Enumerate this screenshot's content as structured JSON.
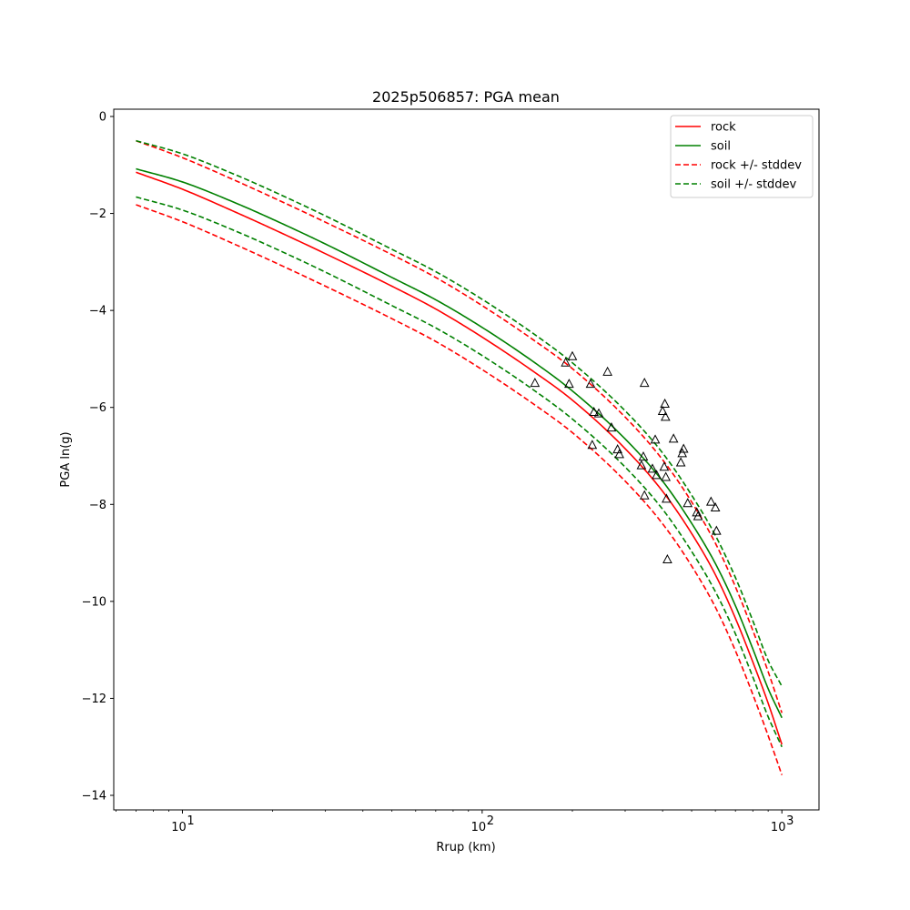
{
  "chart_data": {
    "type": "line",
    "title": "2025p506857: PGA mean",
    "xlabel": "Rrup (km)",
    "ylabel": "PGA ln(g)",
    "xscale": "log",
    "xlim": [
      5.9,
      1330
    ],
    "ylim": [
      -14.3,
      0.15
    ],
    "grid": false,
    "legend_position": "top-right",
    "x_ticks": [
      {
        "value": 10,
        "base": "10",
        "exp": "1"
      },
      {
        "value": 100,
        "base": "10",
        "exp": "2"
      },
      {
        "value": 1000,
        "base": "10",
        "exp": "3"
      }
    ],
    "y_ticks": [
      {
        "value": 0,
        "label": "0"
      },
      {
        "value": -2,
        "label": "−2"
      },
      {
        "value": -4,
        "label": "−4"
      },
      {
        "value": -6,
        "label": "−6"
      },
      {
        "value": -8,
        "label": "−8"
      },
      {
        "value": -10,
        "label": "−10"
      },
      {
        "value": -12,
        "label": "−12"
      },
      {
        "value": -14,
        "label": "−14"
      }
    ],
    "x": [
      7,
      10,
      15,
      20,
      30,
      50,
      70,
      100,
      150,
      200,
      300,
      400,
      500,
      600,
      700,
      800,
      900,
      1000
    ],
    "series": [
      {
        "name": "rock",
        "style": "solid",
        "color": "#ff0000",
        "in_legend": true,
        "values": [
          -1.15,
          -1.5,
          -1.97,
          -2.32,
          -2.83,
          -3.5,
          -3.97,
          -4.55,
          -5.28,
          -5.85,
          -6.85,
          -7.73,
          -8.6,
          -9.45,
          -10.35,
          -11.25,
          -12.1,
          -12.95
        ]
      },
      {
        "name": "soil",
        "style": "solid",
        "color": "#008000",
        "in_legend": true,
        "values": [
          -1.08,
          -1.35,
          -1.78,
          -2.12,
          -2.63,
          -3.32,
          -3.78,
          -4.35,
          -5.08,
          -5.66,
          -6.65,
          -7.52,
          -8.39,
          -9.22,
          -10.09,
          -10.98,
          -11.8,
          -12.4
        ]
      },
      {
        "name": "rock +/- stddev",
        "style": "dashed",
        "color": "#ff0000",
        "in_legend": true,
        "values": [
          -0.5,
          -0.85,
          -1.32,
          -1.67,
          -2.18,
          -2.85,
          -3.32,
          -3.9,
          -4.63,
          -5.2,
          -6.2,
          -7.08,
          -7.95,
          -8.8,
          -9.7,
          -10.6,
          -11.45,
          -12.3
        ]
      },
      {
        "name": "",
        "style": "dashed",
        "color": "#ff0000",
        "in_legend": false,
        "values": [
          -1.82,
          -2.17,
          -2.64,
          -2.99,
          -3.5,
          -4.17,
          -4.64,
          -5.22,
          -5.95,
          -6.52,
          -7.52,
          -8.4,
          -9.27,
          -10.12,
          -11.02,
          -11.92,
          -12.77,
          -13.58
        ]
      },
      {
        "name": "soil +/- stddev",
        "style": "dashed",
        "color": "#008000",
        "in_legend": true,
        "values": [
          -0.5,
          -0.77,
          -1.2,
          -1.54,
          -2.05,
          -2.74,
          -3.2,
          -3.77,
          -4.5,
          -5.08,
          -6.07,
          -6.94,
          -7.81,
          -8.64,
          -9.51,
          -10.4,
          -11.22,
          -11.75
        ]
      },
      {
        "name": "",
        "style": "dashed",
        "color": "#008000",
        "in_legend": false,
        "values": [
          -1.66,
          -1.93,
          -2.36,
          -2.7,
          -3.21,
          -3.9,
          -4.36,
          -4.93,
          -5.66,
          -6.24,
          -7.23,
          -8.1,
          -8.97,
          -9.8,
          -10.67,
          -11.56,
          -12.38,
          -13.0
        ]
      }
    ],
    "observations": {
      "marker": "triangle",
      "color": "#000000",
      "points": [
        [
          150,
          -5.5
        ],
        [
          190,
          -5.08
        ],
        [
          195,
          -5.52
        ],
        [
          200,
          -4.95
        ],
        [
          230,
          -5.52
        ],
        [
          233,
          -6.78
        ],
        [
          236,
          -6.1
        ],
        [
          245,
          -6.13
        ],
        [
          262,
          -5.27
        ],
        [
          270,
          -6.42
        ],
        [
          283,
          -6.87
        ],
        [
          287,
          -6.97
        ],
        [
          340,
          -7.2
        ],
        [
          345,
          -7.02
        ],
        [
          348,
          -7.82
        ],
        [
          348,
          -5.5
        ],
        [
          370,
          -7.27
        ],
        [
          378,
          -6.67
        ],
        [
          382,
          -7.4
        ],
        [
          400,
          -6.08
        ],
        [
          405,
          -7.23
        ],
        [
          407,
          -5.93
        ],
        [
          409,
          -6.2
        ],
        [
          410,
          -7.44
        ],
        [
          412,
          -7.89
        ],
        [
          415,
          -9.14
        ],
        [
          435,
          -6.65
        ],
        [
          460,
          -7.14
        ],
        [
          465,
          -6.95
        ],
        [
          470,
          -6.86
        ],
        [
          485,
          -7.98
        ],
        [
          520,
          -8.17
        ],
        [
          525,
          -8.25
        ],
        [
          580,
          -7.95
        ],
        [
          600,
          -8.07
        ],
        [
          605,
          -8.55
        ]
      ]
    }
  }
}
